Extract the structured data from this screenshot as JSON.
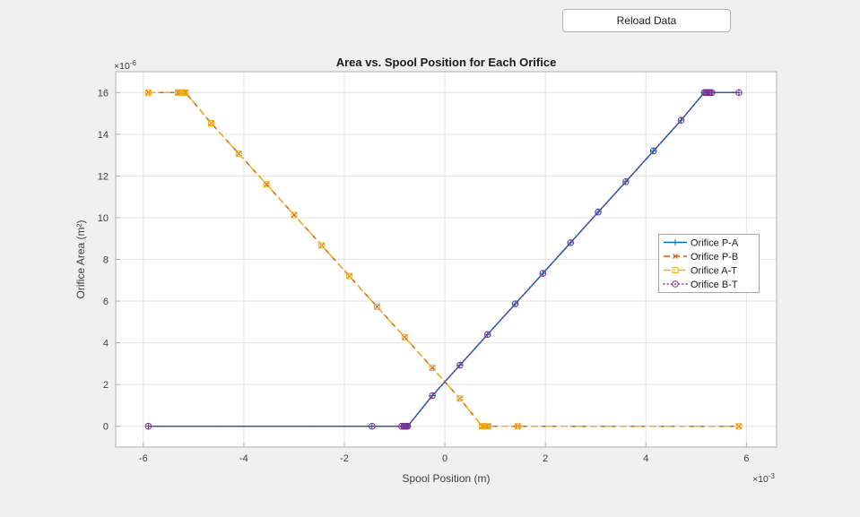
{
  "app": {
    "background_color": "#f0f0f0"
  },
  "toolbar": {
    "reload_button_label": "Reload Data"
  },
  "chart_data": {
    "type": "line",
    "title": "Area vs. Spool Position for Each Orifice",
    "xlabel": "Spool Position (m)",
    "ylabel": "Orifice Area (m²)",
    "x_multiplier": {
      "base": "×10",
      "exp": "-3"
    },
    "y_multiplier": {
      "base": "×10",
      "exp": "-6"
    },
    "xlim": [
      -6.55,
      6.6
    ],
    "ylim": [
      -1,
      17
    ],
    "xticks": [
      -6,
      -4,
      -2,
      0,
      2,
      4,
      6
    ],
    "yticks": [
      0,
      2,
      4,
      6,
      8,
      10,
      12,
      14,
      16
    ],
    "grid": true,
    "legend_position": "right-middle",
    "colors": {
      "plot_bg": "#ffffff",
      "axis": "#b0b0b0",
      "grid": "#e2e2e2",
      "tick_label": "#3d3d3d",
      "title": "#1a1a1a",
      "legend_edge": "#a6a6a6"
    },
    "series": [
      {
        "name": "Orifice P-A",
        "color": "#0072BD",
        "line_style": "solid",
        "marker": "plus",
        "x": [
          -5.9,
          -1.45,
          -0.86,
          -0.82,
          -0.8,
          -0.78,
          -0.76,
          -0.74,
          -0.25,
          0.3,
          0.85,
          1.4,
          1.95,
          2.5,
          3.05,
          3.6,
          4.15,
          4.7,
          5.16,
          5.19,
          5.22,
          5.25,
          5.28,
          5.31,
          5.85
        ],
        "y": [
          0,
          0,
          0,
          0,
          0,
          0,
          0,
          0,
          1.47,
          2.93,
          4.4,
          5.87,
          7.33,
          8.8,
          10.27,
          11.73,
          13.2,
          14.67,
          16,
          16,
          16,
          16,
          16,
          16,
          16
        ]
      },
      {
        "name": "Orifice P-B",
        "color": "#D95319",
        "line_style": "dashed",
        "marker": "x",
        "x": [
          -5.9,
          -5.31,
          -5.28,
          -5.25,
          -5.22,
          -5.19,
          -5.16,
          -4.65,
          -4.1,
          -3.55,
          -3.0,
          -2.45,
          -1.9,
          -1.35,
          -0.8,
          -0.25,
          0.3,
          0.74,
          0.78,
          0.82,
          0.86,
          1.45,
          5.85
        ],
        "y": [
          16,
          16,
          16,
          16,
          16,
          16,
          16,
          14.53,
          13.07,
          11.6,
          10.13,
          8.67,
          7.2,
          5.73,
          4.27,
          2.8,
          1.33,
          0,
          0,
          0,
          0,
          0,
          0
        ]
      },
      {
        "name": "Orifice A-T",
        "color": "#EDB120",
        "line_style": "dashdot",
        "marker": "square",
        "x": [
          -5.9,
          -5.31,
          -5.28,
          -5.25,
          -5.22,
          -5.19,
          -5.16,
          -4.65,
          -4.1,
          -3.55,
          -3.0,
          -2.45,
          -1.9,
          -1.35,
          -0.8,
          -0.25,
          0.3,
          0.74,
          0.78,
          0.82,
          0.86,
          1.45,
          5.85
        ],
        "y": [
          16,
          16,
          16,
          16,
          16,
          16,
          16,
          14.53,
          13.07,
          11.6,
          10.13,
          8.67,
          7.2,
          5.73,
          4.27,
          2.8,
          1.33,
          0,
          0,
          0,
          0,
          0,
          0
        ]
      },
      {
        "name": "Orifice B-T",
        "color": "#7E2F8E",
        "line_style": "dotted",
        "marker": "circle",
        "x": [
          -5.9,
          -1.45,
          -0.86,
          -0.82,
          -0.8,
          -0.78,
          -0.76,
          -0.74,
          -0.25,
          0.3,
          0.85,
          1.4,
          1.95,
          2.5,
          3.05,
          3.6,
          4.15,
          4.7,
          5.16,
          5.19,
          5.22,
          5.25,
          5.28,
          5.31,
          5.85
        ],
        "y": [
          0,
          0,
          0,
          0,
          0,
          0,
          0,
          0,
          1.47,
          2.93,
          4.4,
          5.87,
          7.33,
          8.8,
          10.27,
          11.73,
          13.2,
          14.67,
          16,
          16,
          16,
          16,
          16,
          16,
          16
        ]
      }
    ]
  }
}
